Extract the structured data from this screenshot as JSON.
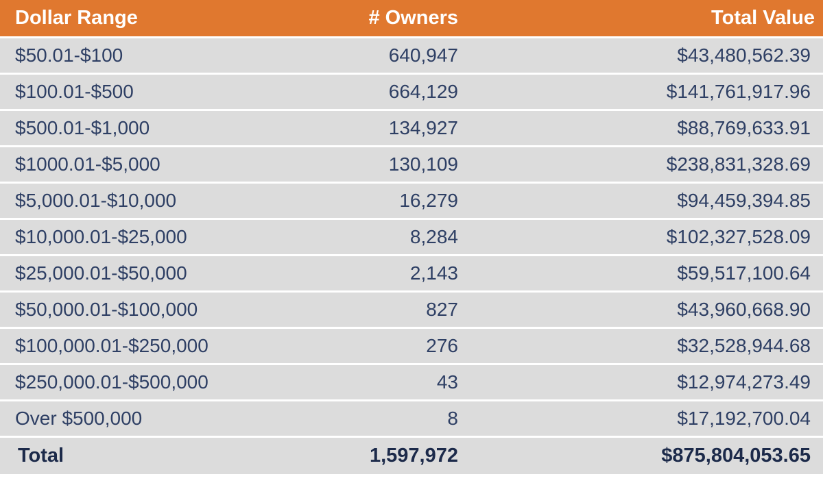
{
  "table": {
    "headers": {
      "range": "Dollar Range",
      "owners": "# Owners",
      "value": "Total Value"
    },
    "rows": [
      {
        "range": "$50.01-$100",
        "owners": "640,947",
        "value": "$43,480,562.39"
      },
      {
        "range": "$100.01-$500",
        "owners": "664,129",
        "value": "$141,761,917.96"
      },
      {
        "range": "$500.01-$1,000",
        "owners": "134,927",
        "value": "$88,769,633.91"
      },
      {
        "range": "$1000.01-$5,000",
        "owners": "130,109",
        "value": "$238,831,328.69"
      },
      {
        "range": "$5,000.01-$10,000",
        "owners": "16,279",
        "value": "$94,459,394.85"
      },
      {
        "range": "$10,000.01-$25,000",
        "owners": "8,284",
        "value": "$102,327,528.09"
      },
      {
        "range": "$25,000.01-$50,000",
        "owners": "2,143",
        "value": "$59,517,100.64"
      },
      {
        "range": "$50,000.01-$100,000",
        "owners": "827",
        "value": "$43,960,668.90"
      },
      {
        "range": "$100,000.01-$250,000",
        "owners": "276",
        "value": "$32,528,944.68"
      },
      {
        "range": "$250,000.01-$500,000",
        "owners": "43",
        "value": "$12,974,273.49"
      },
      {
        "range": "Over $500,000",
        "owners": "8",
        "value": "$17,192,700.04"
      }
    ],
    "total": {
      "label": "Total",
      "owners": "1,597,972",
      "value": "$875,804,053.65"
    }
  },
  "colors": {
    "header_bg": "#e0782f",
    "row_bg": "#dcdcdc",
    "text": "#2e3f64"
  }
}
